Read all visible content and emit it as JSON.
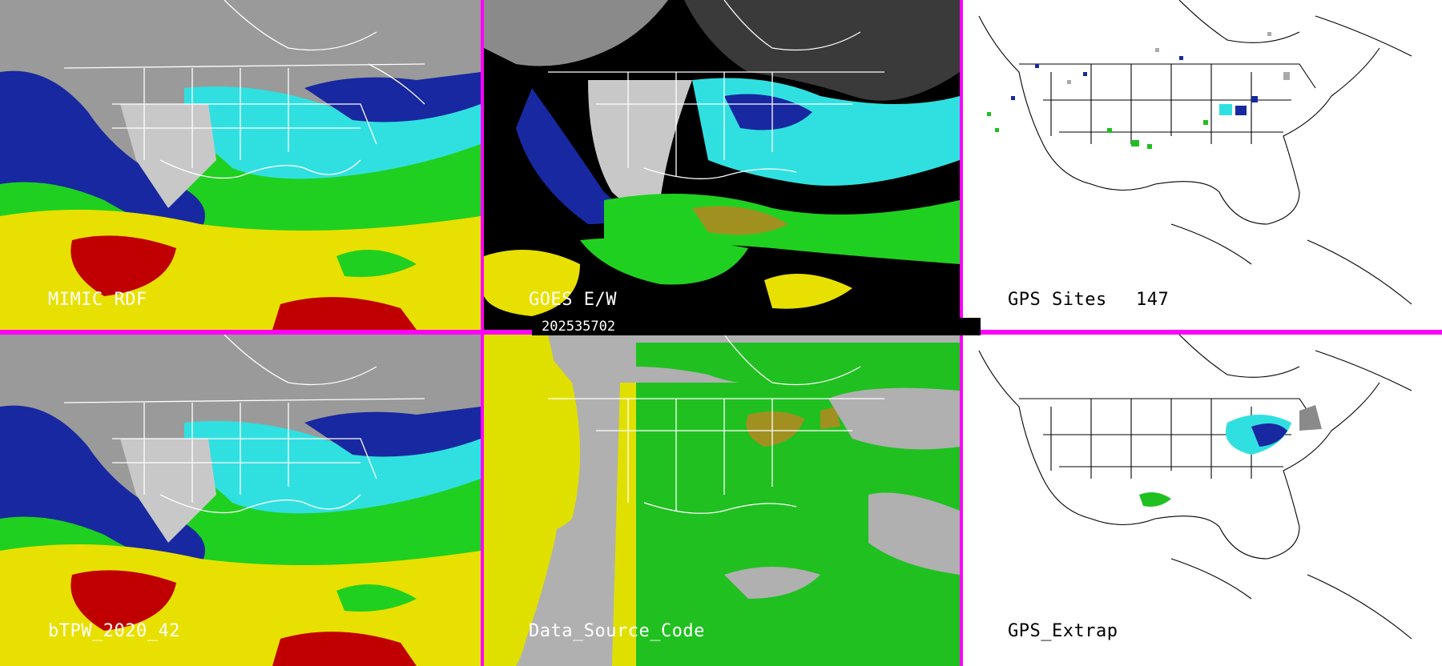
{
  "panels": [
    {
      "label": "MIMIC RDF"
    },
    {
      "label": "GOES E/W"
    },
    {
      "label": "GPS Sites",
      "count": "147"
    },
    {
      "label": "bTPW_2020_42"
    },
    {
      "label": "Data_Source_Code"
    },
    {
      "label": "GPS_Extrap"
    }
  ],
  "timestamp": "202535702",
  "colors": {
    "separator": "#ff00ff",
    "moist_red": "#c00000",
    "yellow": "#e8e000",
    "green": "#20d020",
    "cyan": "#30e0e0",
    "blue": "#1828a0",
    "navy": "#000070",
    "gray": "#b0b0b0",
    "source_green": "#20c020",
    "source_yellow": "#e0e000",
    "source_olive": "#a09020"
  }
}
